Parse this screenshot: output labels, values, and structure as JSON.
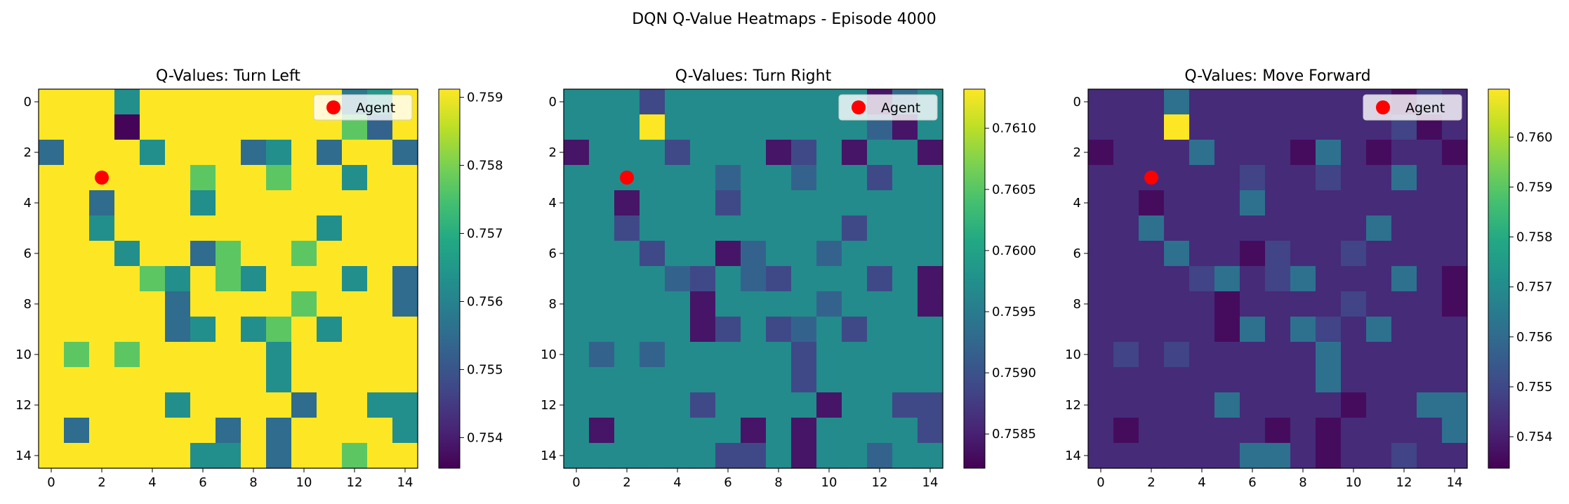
{
  "suptitle": "DQN Q-Value Heatmaps - Episode 4000",
  "legend_label": "Agent",
  "colors": {
    "agent_marker": "#ff0000",
    "colormap": "viridis"
  },
  "chart_data": [
    {
      "type": "heatmap",
      "title": "Q-Values: Turn Left",
      "x_ticks": [
        0,
        2,
        4,
        6,
        8,
        10,
        12,
        14
      ],
      "y_ticks": [
        0,
        2,
        4,
        6,
        8,
        10,
        12,
        14
      ],
      "grid_size": 15,
      "agent": {
        "x": 2,
        "y": 3
      },
      "legend_position": "top-right",
      "colorbar": {
        "min": 0.75355,
        "max": 0.75912,
        "ticks": [
          0.754,
          0.755,
          0.756,
          0.757,
          0.758,
          0.759
        ],
        "tick_labels": [
          "0.754",
          "0.755",
          "0.756",
          "0.757",
          "0.758",
          "0.759"
        ]
      },
      "cells": [
        {
          "r": 0,
          "c": 3,
          "v": 0.7563
        },
        {
          "r": 0,
          "c": 12,
          "v": 0.7558
        },
        {
          "r": 0,
          "c": 13,
          "v": 0.7565
        },
        {
          "r": 1,
          "c": 3,
          "v": 0.7536
        },
        {
          "r": 1,
          "c": 12,
          "v": 0.7577
        },
        {
          "r": 1,
          "c": 13,
          "v": 0.7553
        },
        {
          "r": 2,
          "c": 0,
          "v": 0.7555
        },
        {
          "r": 2,
          "c": 4,
          "v": 0.7563
        },
        {
          "r": 2,
          "c": 8,
          "v": 0.7555
        },
        {
          "r": 2,
          "c": 9,
          "v": 0.7563
        },
        {
          "r": 2,
          "c": 11,
          "v": 0.7555
        },
        {
          "r": 2,
          "c": 14,
          "v": 0.7555
        },
        {
          "r": 3,
          "c": 6,
          "v": 0.7577
        },
        {
          "r": 3,
          "c": 9,
          "v": 0.7577
        },
        {
          "r": 3,
          "c": 12,
          "v": 0.7563
        },
        {
          "r": 4,
          "c": 2,
          "v": 0.7555
        },
        {
          "r": 4,
          "c": 6,
          "v": 0.7563
        },
        {
          "r": 5,
          "c": 2,
          "v": 0.7563
        },
        {
          "r": 5,
          "c": 11,
          "v": 0.7563
        },
        {
          "r": 6,
          "c": 3,
          "v": 0.7563
        },
        {
          "r": 6,
          "c": 6,
          "v": 0.7555
        },
        {
          "r": 6,
          "c": 7,
          "v": 0.7577
        },
        {
          "r": 6,
          "c": 10,
          "v": 0.7577
        },
        {
          "r": 7,
          "c": 4,
          "v": 0.7577
        },
        {
          "r": 7,
          "c": 5,
          "v": 0.7563
        },
        {
          "r": 7,
          "c": 7,
          "v": 0.7577
        },
        {
          "r": 7,
          "c": 8,
          "v": 0.7563
        },
        {
          "r": 7,
          "c": 12,
          "v": 0.7563
        },
        {
          "r": 7,
          "c": 14,
          "v": 0.7555
        },
        {
          "r": 8,
          "c": 5,
          "v": 0.7555
        },
        {
          "r": 8,
          "c": 10,
          "v": 0.7577
        },
        {
          "r": 8,
          "c": 14,
          "v": 0.7555
        },
        {
          "r": 9,
          "c": 5,
          "v": 0.7555
        },
        {
          "r": 9,
          "c": 6,
          "v": 0.7563
        },
        {
          "r": 9,
          "c": 8,
          "v": 0.7563
        },
        {
          "r": 9,
          "c": 9,
          "v": 0.7577
        },
        {
          "r": 9,
          "c": 11,
          "v": 0.7563
        },
        {
          "r": 10,
          "c": 1,
          "v": 0.7577
        },
        {
          "r": 10,
          "c": 3,
          "v": 0.7577
        },
        {
          "r": 10,
          "c": 9,
          "v": 0.7563
        },
        {
          "r": 11,
          "c": 9,
          "v": 0.7563
        },
        {
          "r": 12,
          "c": 5,
          "v": 0.7563
        },
        {
          "r": 12,
          "c": 10,
          "v": 0.7555
        },
        {
          "r": 12,
          "c": 13,
          "v": 0.7563
        },
        {
          "r": 12,
          "c": 14,
          "v": 0.7563
        },
        {
          "r": 13,
          "c": 1,
          "v": 0.7555
        },
        {
          "r": 13,
          "c": 7,
          "v": 0.7555
        },
        {
          "r": 13,
          "c": 9,
          "v": 0.7555
        },
        {
          "r": 13,
          "c": 14,
          "v": 0.7563
        },
        {
          "r": 14,
          "c": 6,
          "v": 0.7563
        },
        {
          "r": 14,
          "c": 7,
          "v": 0.7563
        },
        {
          "r": 14,
          "c": 9,
          "v": 0.7555
        },
        {
          "r": 14,
          "c": 12,
          "v": 0.7577
        }
      ],
      "default_value": 0.75912
    },
    {
      "type": "heatmap",
      "title": "Q-Values: Turn Right",
      "x_ticks": [
        0,
        2,
        4,
        6,
        8,
        10,
        12,
        14
      ],
      "y_ticks": [
        0,
        2,
        4,
        6,
        8,
        10,
        12,
        14
      ],
      "grid_size": 15,
      "agent": {
        "x": 2,
        "y": 3
      },
      "legend_position": "top-right",
      "colorbar": {
        "min": 0.75822,
        "max": 0.76132,
        "ticks": [
          0.7585,
          0.759,
          0.7595,
          0.76,
          0.7605,
          0.761
        ],
        "tick_labels": [
          "0.7585",
          "0.7590",
          "0.7595",
          "0.7600",
          "0.7605",
          "0.7610"
        ]
      },
      "cells": [
        {
          "r": 0,
          "c": 3,
          "v": 0.7589
        },
        {
          "r": 0,
          "c": 12,
          "v": 0.7584
        },
        {
          "r": 0,
          "c": 13,
          "v": 0.7593
        },
        {
          "r": 1,
          "c": 3,
          "v": 0.76132
        },
        {
          "r": 1,
          "c": 12,
          "v": 0.7592
        },
        {
          "r": 1,
          "c": 13,
          "v": 0.7584
        },
        {
          "r": 2,
          "c": 0,
          "v": 0.7584
        },
        {
          "r": 2,
          "c": 4,
          "v": 0.7589
        },
        {
          "r": 2,
          "c": 8,
          "v": 0.7584
        },
        {
          "r": 2,
          "c": 9,
          "v": 0.7589
        },
        {
          "r": 2,
          "c": 11,
          "v": 0.7584
        },
        {
          "r": 2,
          "c": 14,
          "v": 0.7584
        },
        {
          "r": 3,
          "c": 6,
          "v": 0.7592
        },
        {
          "r": 3,
          "c": 9,
          "v": 0.7592
        },
        {
          "r": 3,
          "c": 12,
          "v": 0.7589
        },
        {
          "r": 4,
          "c": 2,
          "v": 0.7584
        },
        {
          "r": 4,
          "c": 6,
          "v": 0.7589
        },
        {
          "r": 5,
          "c": 2,
          "v": 0.7589
        },
        {
          "r": 5,
          "c": 11,
          "v": 0.7589
        },
        {
          "r": 6,
          "c": 3,
          "v": 0.7589
        },
        {
          "r": 6,
          "c": 6,
          "v": 0.7584
        },
        {
          "r": 6,
          "c": 7,
          "v": 0.7592
        },
        {
          "r": 6,
          "c": 10,
          "v": 0.7592
        },
        {
          "r": 7,
          "c": 4,
          "v": 0.7592
        },
        {
          "r": 7,
          "c": 5,
          "v": 0.7589
        },
        {
          "r": 7,
          "c": 7,
          "v": 0.7592
        },
        {
          "r": 7,
          "c": 8,
          "v": 0.7589
        },
        {
          "r": 7,
          "c": 12,
          "v": 0.7589
        },
        {
          "r": 7,
          "c": 14,
          "v": 0.7584
        },
        {
          "r": 8,
          "c": 5,
          "v": 0.7584
        },
        {
          "r": 8,
          "c": 10,
          "v": 0.7592
        },
        {
          "r": 8,
          "c": 14,
          "v": 0.7584
        },
        {
          "r": 9,
          "c": 5,
          "v": 0.7584
        },
        {
          "r": 9,
          "c": 6,
          "v": 0.7589
        },
        {
          "r": 9,
          "c": 8,
          "v": 0.7589
        },
        {
          "r": 9,
          "c": 9,
          "v": 0.7592
        },
        {
          "r": 9,
          "c": 11,
          "v": 0.7589
        },
        {
          "r": 10,
          "c": 1,
          "v": 0.7592
        },
        {
          "r": 10,
          "c": 3,
          "v": 0.7592
        },
        {
          "r": 10,
          "c": 9,
          "v": 0.7589
        },
        {
          "r": 11,
          "c": 9,
          "v": 0.7589
        },
        {
          "r": 12,
          "c": 5,
          "v": 0.7589
        },
        {
          "r": 12,
          "c": 10,
          "v": 0.7584
        },
        {
          "r": 12,
          "c": 13,
          "v": 0.7589
        },
        {
          "r": 12,
          "c": 14,
          "v": 0.7589
        },
        {
          "r": 13,
          "c": 1,
          "v": 0.7584
        },
        {
          "r": 13,
          "c": 7,
          "v": 0.7584
        },
        {
          "r": 13,
          "c": 9,
          "v": 0.7584
        },
        {
          "r": 13,
          "c": 14,
          "v": 0.7589
        },
        {
          "r": 14,
          "c": 6,
          "v": 0.7589
        },
        {
          "r": 14,
          "c": 7,
          "v": 0.7589
        },
        {
          "r": 14,
          "c": 9,
          "v": 0.7584
        },
        {
          "r": 14,
          "c": 12,
          "v": 0.7592
        }
      ],
      "default_value": 0.7597
    },
    {
      "type": "heatmap",
      "title": "Q-Values: Move Forward",
      "x_ticks": [
        0,
        2,
        4,
        6,
        8,
        10,
        12,
        14
      ],
      "y_ticks": [
        0,
        2,
        4,
        6,
        8,
        10,
        12,
        14
      ],
      "grid_size": 15,
      "agent": {
        "x": 2,
        "y": 3
      },
      "legend_position": "top-right",
      "colorbar": {
        "min": 0.75337,
        "max": 0.76096,
        "ticks": [
          0.754,
          0.755,
          0.756,
          0.757,
          0.758,
          0.759,
          0.76
        ],
        "tick_labels": [
          "0.754",
          "0.755",
          "0.756",
          "0.757",
          "0.758",
          "0.759",
          "0.760"
        ]
      },
      "cells": [
        {
          "r": 0,
          "c": 3,
          "v": 0.7562
        },
        {
          "r": 0,
          "c": 12,
          "v": 0.7536
        },
        {
          "r": 0,
          "c": 13,
          "v": 0.7549
        },
        {
          "r": 1,
          "c": 3,
          "v": 0.76096
        },
        {
          "r": 1,
          "c": 12,
          "v": 0.7549
        },
        {
          "r": 1,
          "c": 13,
          "v": 0.7536
        },
        {
          "r": 2,
          "c": 0,
          "v": 0.7536
        },
        {
          "r": 2,
          "c": 4,
          "v": 0.7562
        },
        {
          "r": 2,
          "c": 8,
          "v": 0.7536
        },
        {
          "r": 2,
          "c": 9,
          "v": 0.7562
        },
        {
          "r": 2,
          "c": 11,
          "v": 0.7536
        },
        {
          "r": 2,
          "c": 14,
          "v": 0.7536
        },
        {
          "r": 3,
          "c": 6,
          "v": 0.7549
        },
        {
          "r": 3,
          "c": 9,
          "v": 0.7549
        },
        {
          "r": 3,
          "c": 12,
          "v": 0.7562
        },
        {
          "r": 4,
          "c": 2,
          "v": 0.7536
        },
        {
          "r": 4,
          "c": 6,
          "v": 0.7562
        },
        {
          "r": 5,
          "c": 2,
          "v": 0.7562
        },
        {
          "r": 5,
          "c": 11,
          "v": 0.7562
        },
        {
          "r": 6,
          "c": 3,
          "v": 0.7562
        },
        {
          "r": 6,
          "c": 6,
          "v": 0.7536
        },
        {
          "r": 6,
          "c": 7,
          "v": 0.7549
        },
        {
          "r": 6,
          "c": 10,
          "v": 0.7549
        },
        {
          "r": 7,
          "c": 4,
          "v": 0.7549
        },
        {
          "r": 7,
          "c": 5,
          "v": 0.7562
        },
        {
          "r": 7,
          "c": 7,
          "v": 0.7549
        },
        {
          "r": 7,
          "c": 8,
          "v": 0.7562
        },
        {
          "r": 7,
          "c": 12,
          "v": 0.7562
        },
        {
          "r": 7,
          "c": 14,
          "v": 0.7536
        },
        {
          "r": 8,
          "c": 5,
          "v": 0.7536
        },
        {
          "r": 8,
          "c": 10,
          "v": 0.7549
        },
        {
          "r": 8,
          "c": 14,
          "v": 0.7536
        },
        {
          "r": 9,
          "c": 5,
          "v": 0.7536
        },
        {
          "r": 9,
          "c": 6,
          "v": 0.7562
        },
        {
          "r": 9,
          "c": 8,
          "v": 0.7562
        },
        {
          "r": 9,
          "c": 9,
          "v": 0.7549
        },
        {
          "r": 9,
          "c": 11,
          "v": 0.7562
        },
        {
          "r": 10,
          "c": 1,
          "v": 0.7549
        },
        {
          "r": 10,
          "c": 3,
          "v": 0.7549
        },
        {
          "r": 10,
          "c": 9,
          "v": 0.7562
        },
        {
          "r": 11,
          "c": 9,
          "v": 0.7562
        },
        {
          "r": 12,
          "c": 5,
          "v": 0.7562
        },
        {
          "r": 12,
          "c": 10,
          "v": 0.7536
        },
        {
          "r": 12,
          "c": 13,
          "v": 0.7562
        },
        {
          "r": 12,
          "c": 14,
          "v": 0.7562
        },
        {
          "r": 13,
          "c": 1,
          "v": 0.7536
        },
        {
          "r": 13,
          "c": 7,
          "v": 0.7536
        },
        {
          "r": 13,
          "c": 9,
          "v": 0.7536
        },
        {
          "r": 13,
          "c": 14,
          "v": 0.7562
        },
        {
          "r": 14,
          "c": 6,
          "v": 0.7562
        },
        {
          "r": 14,
          "c": 7,
          "v": 0.7562
        },
        {
          "r": 14,
          "c": 9,
          "v": 0.7536
        },
        {
          "r": 14,
          "c": 12,
          "v": 0.7549
        }
      ],
      "default_value": 0.7543
    }
  ]
}
